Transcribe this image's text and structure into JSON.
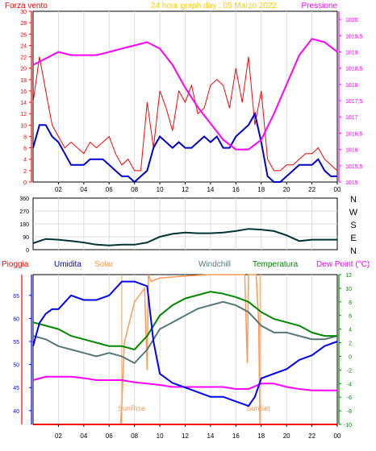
{
  "colors": {
    "bg": "#ffffff",
    "wind": "#ff0000",
    "wind_avg": "#0000cc",
    "pressure": "#ff00ff",
    "direction": "#003333",
    "rain": "#ff0000",
    "humidity": "#0000ff",
    "solar": "#ff9955",
    "windchill": "#557777",
    "temperature": "#008800",
    "dewpoint": "#ff00ff",
    "sun_marker": "#ff9955"
  },
  "header": {
    "left_label": "Forza vento",
    "title": "24 hour graph day : 05 Marzo 2022",
    "right_label": "Pressione"
  },
  "x_ticks": [
    "02",
    "04",
    "06",
    "08",
    "10",
    "12",
    "14",
    "16",
    "18",
    "20",
    "22",
    "00"
  ],
  "chart_data": [
    {
      "type": "line",
      "name": "wind-pressure",
      "x_range_hours": [
        0,
        24
      ],
      "ylim_left": [
        0,
        30
      ],
      "ylim_right": [
        1015,
        1020.25
      ],
      "y_ticks_left": [
        "0",
        "2",
        "4",
        "6",
        "8",
        "10",
        "12",
        "14",
        "16",
        "18",
        "20",
        "22",
        "24",
        "26",
        "28",
        "30"
      ],
      "y_ticks_right": [
        "1015",
        "1015,5",
        "1016",
        "1016,5",
        "1017",
        "1017,5",
        "1018",
        "1018,5",
        "1019",
        "1019,5",
        "1020"
      ],
      "series": [
        {
          "axis": "left",
          "x": [
            0.0,
            0.5,
            1.0,
            1.5,
            2.0,
            2.5,
            3.0,
            3.5,
            4.0,
            4.5,
            5.0,
            5.5,
            6.0,
            6.5,
            7.0,
            7.5,
            8.0,
            8.5,
            9.0,
            9.5,
            10.0,
            10.5,
            11.0,
            11.5,
            12.0,
            12.5,
            13.0,
            13.5,
            14.0,
            14.5,
            15.0,
            15.5,
            16.0,
            16.5,
            17.0,
            17.5,
            18.0,
            18.5,
            19.0,
            19.5,
            20.0,
            20.5,
            21.0,
            21.5,
            22.0,
            22.5,
            23.0,
            23.5,
            24.0
          ],
          "values": [
            14,
            22,
            16,
            10,
            8,
            6,
            7,
            6,
            5,
            7,
            6,
            7,
            8,
            5,
            3,
            4,
            2,
            2,
            14,
            6,
            16,
            13,
            9,
            16,
            14,
            17,
            12,
            13,
            17,
            18,
            17,
            13,
            20,
            14,
            22,
            10,
            16,
            4,
            2,
            2,
            3,
            3,
            4,
            5,
            5,
            6,
            4,
            3,
            2
          ]
        },
        {
          "axis": "left",
          "x": [
            0.0,
            0.5,
            1.0,
            1.5,
            2.0,
            2.5,
            3.0,
            3.5,
            4.0,
            4.5,
            5.0,
            5.5,
            6.0,
            6.5,
            7.0,
            7.5,
            8.0,
            8.5,
            9.0,
            9.5,
            10.0,
            10.5,
            11.0,
            11.5,
            12.0,
            12.5,
            13.0,
            13.5,
            14.0,
            14.5,
            15.0,
            15.5,
            16.0,
            16.5,
            17.0,
            17.5,
            18.0,
            18.5,
            19.0,
            19.5,
            20.0,
            20.5,
            21.0,
            21.5,
            22.0,
            22.5,
            23.0,
            23.5,
            24.0
          ],
          "values": [
            6,
            10,
            10,
            8,
            7,
            5,
            3,
            3,
            3,
            4,
            4,
            4,
            3,
            2,
            1,
            1,
            0,
            1,
            2,
            6,
            8,
            7,
            6,
            7,
            6,
            6,
            7,
            8,
            7,
            8,
            6,
            6,
            8,
            9,
            10,
            12,
            7,
            1,
            0,
            0,
            1,
            2,
            3,
            3,
            3,
            4,
            2,
            1,
            1
          ]
        },
        {
          "axis": "right",
          "x": [
            0.0,
            1.0,
            2.0,
            3.0,
            4.0,
            5.0,
            6.0,
            7.0,
            8.0,
            9.0,
            10.0,
            11.0,
            12.0,
            13.0,
            14.0,
            15.0,
            16.0,
            17.0,
            18.0,
            19.0,
            20.0,
            21.0,
            22.0,
            23.0,
            24.0
          ],
          "values": [
            1018.6,
            1018.8,
            1019.0,
            1018.9,
            1018.9,
            1018.9,
            1019.0,
            1019.1,
            1019.2,
            1019.3,
            1019.1,
            1018.6,
            1017.9,
            1017.3,
            1016.8,
            1016.3,
            1016.0,
            1016.0,
            1016.3,
            1017.1,
            1018.0,
            1018.9,
            1019.4,
            1019.3,
            1019.0
          ]
        }
      ]
    },
    {
      "type": "line",
      "name": "wind-direction",
      "x_range_hours": [
        0,
        24
      ],
      "ylim": [
        0,
        360
      ],
      "y_ticks_left": [
        "0",
        "90",
        "180",
        "270",
        "360"
      ],
      "y_labels_right": [
        "N",
        "W",
        "S",
        "E",
        "N"
      ],
      "series": [
        {
          "x": [
            0,
            1,
            2,
            3,
            4,
            5,
            6,
            7,
            8,
            9,
            10,
            11,
            12,
            13,
            14,
            15,
            16,
            17,
            18,
            19,
            20,
            21,
            22,
            23,
            24
          ],
          "values": [
            45,
            75,
            70,
            60,
            50,
            35,
            30,
            35,
            35,
            50,
            90,
            110,
            120,
            115,
            115,
            120,
            130,
            145,
            140,
            130,
            100,
            60,
            70,
            70,
            70
          ]
        }
      ]
    },
    {
      "type": "line",
      "name": "temperature-humidity",
      "x_range_hours": [
        0,
        24
      ],
      "legend": [
        "Pioggia",
        "Umidita",
        "Solar",
        "Windchill",
        "Temperatura",
        "Dew Point (°C)"
      ],
      "ylim_humidity": [
        37,
        69.5
      ],
      "ylim_temperature": [
        -10,
        12
      ],
      "y_ticks_humidity": [
        "40",
        "45",
        "50",
        "55",
        "60",
        "65"
      ],
      "y_ticks_temperature": [
        "-10",
        "-8",
        "-6",
        "-4",
        "-2",
        "0",
        "2",
        "4",
        "6",
        "8",
        "10",
        "12"
      ],
      "annotations": [
        "SunRise",
        "SunSet"
      ],
      "sunrise_hour": 7.0,
      "sunset_hour": 17.9,
      "series": [
        {
          "name": "Umidita",
          "axis": "humidity",
          "x": [
            0,
            0.5,
            1,
            1.5,
            2,
            3,
            4,
            5,
            6,
            7,
            8,
            9,
            9.5,
            10,
            11,
            12,
            13,
            14,
            15,
            16,
            17,
            17.5,
            18,
            19,
            20,
            21,
            22,
            23,
            24
          ],
          "values": [
            54,
            59,
            61,
            62,
            62,
            65,
            64,
            64,
            65,
            68,
            68,
            67,
            55,
            48,
            46,
            45,
            44,
            43,
            43,
            42,
            41,
            43,
            47,
            48,
            49,
            51,
            52,
            54,
            55
          ]
        },
        {
          "name": "Temperatura",
          "axis": "temperature",
          "x": [
            0,
            1,
            2,
            3,
            4,
            5,
            6,
            7,
            8,
            9,
            10,
            11,
            12,
            13,
            14,
            15,
            16,
            17,
            18,
            19,
            20,
            21,
            22,
            23,
            24
          ],
          "values": [
            5.0,
            4.5,
            4.0,
            3.0,
            2.5,
            2.0,
            1.5,
            1.5,
            1.0,
            3.0,
            6.0,
            7.5,
            8.5,
            9.0,
            9.5,
            9.2,
            8.7,
            8.0,
            6.5,
            5.5,
            5.0,
            4.5,
            3.5,
            3.0,
            3.0
          ]
        },
        {
          "name": "Windchill",
          "axis": "temperature",
          "x": [
            0,
            1,
            2,
            3,
            4,
            5,
            6,
            7,
            8,
            9,
            10,
            11,
            12,
            13,
            14,
            15,
            16,
            17,
            18,
            19,
            20,
            21,
            22,
            23,
            24
          ],
          "values": [
            3.0,
            2.5,
            1.5,
            1.0,
            0.5,
            0.0,
            0.5,
            0.0,
            -1.0,
            1.0,
            4.0,
            5.0,
            6.0,
            7.0,
            7.5,
            8.0,
            7.5,
            6.5,
            4.5,
            3.5,
            3.5,
            3.0,
            2.5,
            2.5,
            3.0
          ]
        },
        {
          "name": "Dew Point (°C)",
          "axis": "temperature",
          "x": [
            0,
            1,
            2,
            3,
            4,
            5,
            6,
            7,
            8,
            9,
            10,
            11,
            12,
            13,
            14,
            15,
            16,
            17,
            18,
            19,
            20,
            21,
            22,
            23,
            24
          ],
          "values": [
            -3.5,
            -3.0,
            -3.0,
            -3.0,
            -3.2,
            -3.5,
            -3.5,
            -3.5,
            -3.8,
            -4.0,
            -4.2,
            -4.5,
            -4.5,
            -4.5,
            -4.5,
            -4.5,
            -4.8,
            -4.8,
            -4.0,
            -4.0,
            -4.5,
            -4.8,
            -5.0,
            -5.0,
            -5.0
          ]
        },
        {
          "name": "Solar",
          "axis": "temperature",
          "x": [
            0,
            6.9,
            7.0,
            7.2,
            8.0,
            8.8,
            9.0,
            9.1,
            9.3,
            10,
            12,
            14,
            16,
            16.7,
            16.9,
            17.0,
            17.6,
            17.8,
            17.9,
            18,
            24
          ],
          "values": [
            -10,
            -10,
            -7,
            2,
            8,
            10,
            -2,
            12,
            11,
            11.5,
            11.8,
            12,
            12,
            12,
            -1,
            12,
            12,
            5,
            -10,
            -10,
            -10
          ]
        },
        {
          "name": "Pioggia",
          "axis": "temperature",
          "x": [
            0,
            24
          ],
          "values": [
            -10,
            -10
          ]
        }
      ]
    }
  ]
}
